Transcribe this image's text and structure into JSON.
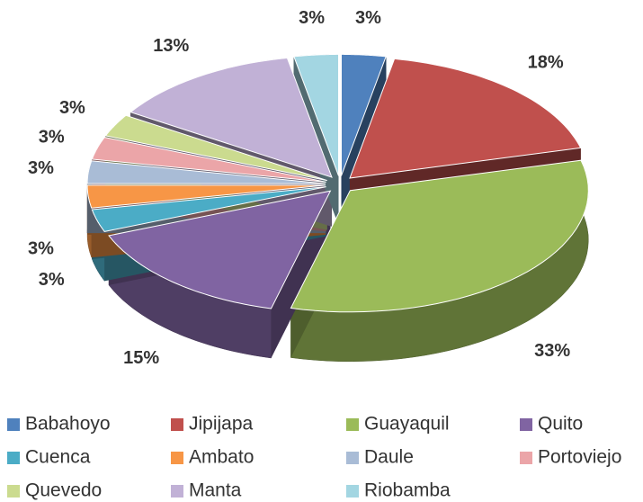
{
  "chart_data": {
    "type": "pie",
    "categories": [
      "Babahoyo",
      "Jipijapa",
      "Guayaquil",
      "Quito",
      "Cuenca",
      "Ambato",
      "Daule",
      "Portoviejo",
      "Quevedo",
      "Manta",
      "Riobamba"
    ],
    "values": [
      3,
      18,
      33,
      15,
      3,
      3,
      3,
      3,
      3,
      13,
      3
    ],
    "value_labels": [
      "3%",
      "18%",
      "33%",
      "15%",
      "3%",
      "3%",
      "3%",
      "3%",
      "3%",
      "13%",
      "3%"
    ],
    "colors": [
      "#4f81bd",
      "#c0504d",
      "#9bbb59",
      "#8064a2",
      "#4bacc6",
      "#f79646",
      "#a9bcd6",
      "#eba5a8",
      "#cbdb8f",
      "#c1b1d6",
      "#a3d6e2"
    ],
    "legend": "bottom"
  }
}
